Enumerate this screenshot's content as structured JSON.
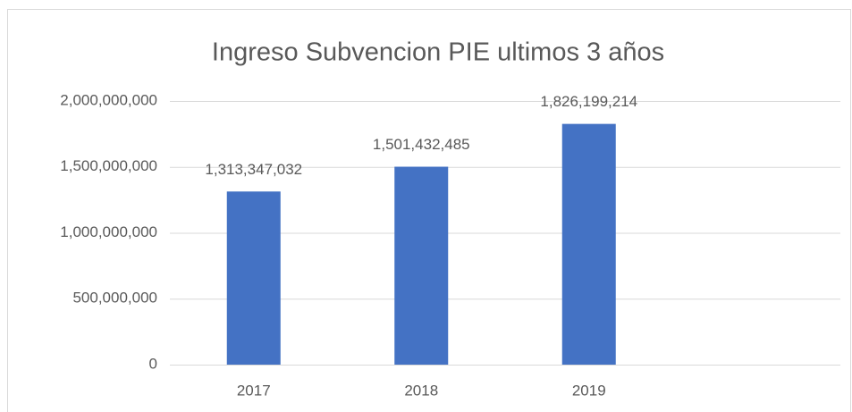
{
  "chart_data": {
    "type": "bar",
    "title": "Ingreso Subvencion PIE ultimos 3 años",
    "categories": [
      "2017",
      "2018",
      "2019",
      null
    ],
    "values": [
      1313347032,
      1501432485,
      1826199214,
      null
    ],
    "value_labels": [
      "1,313,347,032",
      "1,501,432,485",
      "1,826,199,214",
      null
    ],
    "color": "#4472c4",
    "ylim": [
      0,
      2000000000
    ],
    "yticks": [
      0,
      {
        "value": 500000000,
        "label": "500,000,000"
      },
      {
        "value": 1000000000,
        "label": "1,000,000,000"
      },
      {
        "value": 1500000000,
        "label": "1,500,000,000"
      },
      {
        "value": 2000000000,
        "label": "2,000,000,000"
      }
    ],
    "grid": true
  }
}
